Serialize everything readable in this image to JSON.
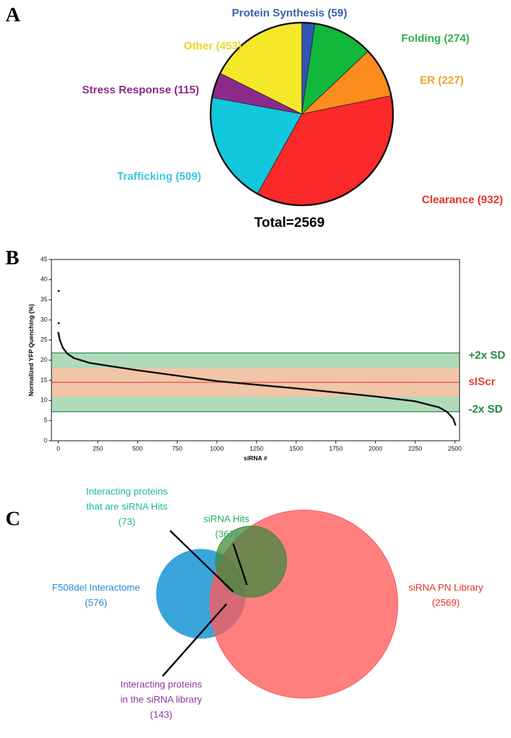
{
  "chart_data": [
    {
      "type": "pie",
      "panel": "A",
      "categories": [
        "Protein Synthesis (59)",
        "Folding (274)",
        "ER (227)",
        "Clearance (932)",
        "Trafficking (509)",
        "Stress Response (115)",
        "Other (453)"
      ],
      "values": [
        59,
        274,
        227,
        932,
        509,
        115,
        453
      ],
      "colors": [
        "#2f55b5",
        "#12b83c",
        "#fb8c1e",
        "#fb2929",
        "#12c8dc",
        "#8c2a8c",
        "#f5e829"
      ],
      "label_colors": [
        "#3b5fb0",
        "#33b04a",
        "#f5a030",
        "#e8302a",
        "#3cc6e0",
        "#8c2a8c",
        "#e8d820"
      ],
      "annotation": "Total=2569"
    },
    {
      "type": "line",
      "panel": "B",
      "ylabel": "Normalized YFP Quenching (%)",
      "xlabel": "siRNA #",
      "xlim": [
        -43,
        2530
      ],
      "ylim": [
        0,
        45
      ],
      "xticks": [
        0,
        250,
        500,
        750,
        1000,
        1250,
        1500,
        1750,
        2000,
        2250,
        2500
      ],
      "yticks": [
        0,
        5,
        10,
        15,
        20,
        25,
        30,
        35,
        40,
        45
      ],
      "bands": [
        {
          "from": 7.2,
          "to": 21.8,
          "color": "#a9d6b3"
        },
        {
          "from": 11,
          "to": 18,
          "color": "#f8c2a6"
        }
      ],
      "reference_lines": [
        {
          "value": 21.8,
          "label": "+2x SD",
          "color": "#1f8a43"
        },
        {
          "value": 14.5,
          "label": "sIScr",
          "color": "#e8413a"
        },
        {
          "value": 7.2,
          "label": "-2x SD",
          "color": "#1f8a43"
        }
      ],
      "series": [
        {
          "type": "line",
          "color": "#111111",
          "x": [
            0,
            10,
            30,
            60,
            100,
            200,
            500,
            1000,
            1500,
            2000,
            2250,
            2400,
            2450,
            2490,
            2505
          ],
          "values": [
            27,
            25,
            23,
            21.5,
            20.5,
            19.3,
            17.5,
            14.8,
            13,
            11,
            9.8,
            8.3,
            7.2,
            5.5,
            3.8
          ]
        },
        {
          "type": "scatter",
          "color": "#111111",
          "x": [
            3,
            3
          ],
          "values": [
            37.2,
            29.2
          ]
        }
      ]
    },
    {
      "type": "venn",
      "panel": "C",
      "sets": [
        {
          "label": [
            "F508del Interactome",
            "(576)"
          ],
          "value": 576,
          "color": "#3aa5dc",
          "text_color": "#2a8ad0"
        },
        {
          "label": [
            "siRNA PN Library",
            "(2569)"
          ],
          "value": 2569,
          "color": "#ff5a5a",
          "text_color": "#e8302a"
        },
        {
          "label": [
            "siRNA Hits",
            "(367)"
          ],
          "value": 367,
          "color": "#3f8a3f",
          "text_color": "#2aaa60"
        }
      ],
      "overlaps": [
        {
          "label": [
            "Interacting proteins",
            "that are siRNA Hits",
            "(73)"
          ],
          "value": 73,
          "text_color": "#1fb5a0"
        },
        {
          "label": [
            "Interacting proteins",
            "in the siRNA library",
            "(143)"
          ],
          "value": 143,
          "text_color": "#8a3aa0"
        }
      ]
    }
  ]
}
